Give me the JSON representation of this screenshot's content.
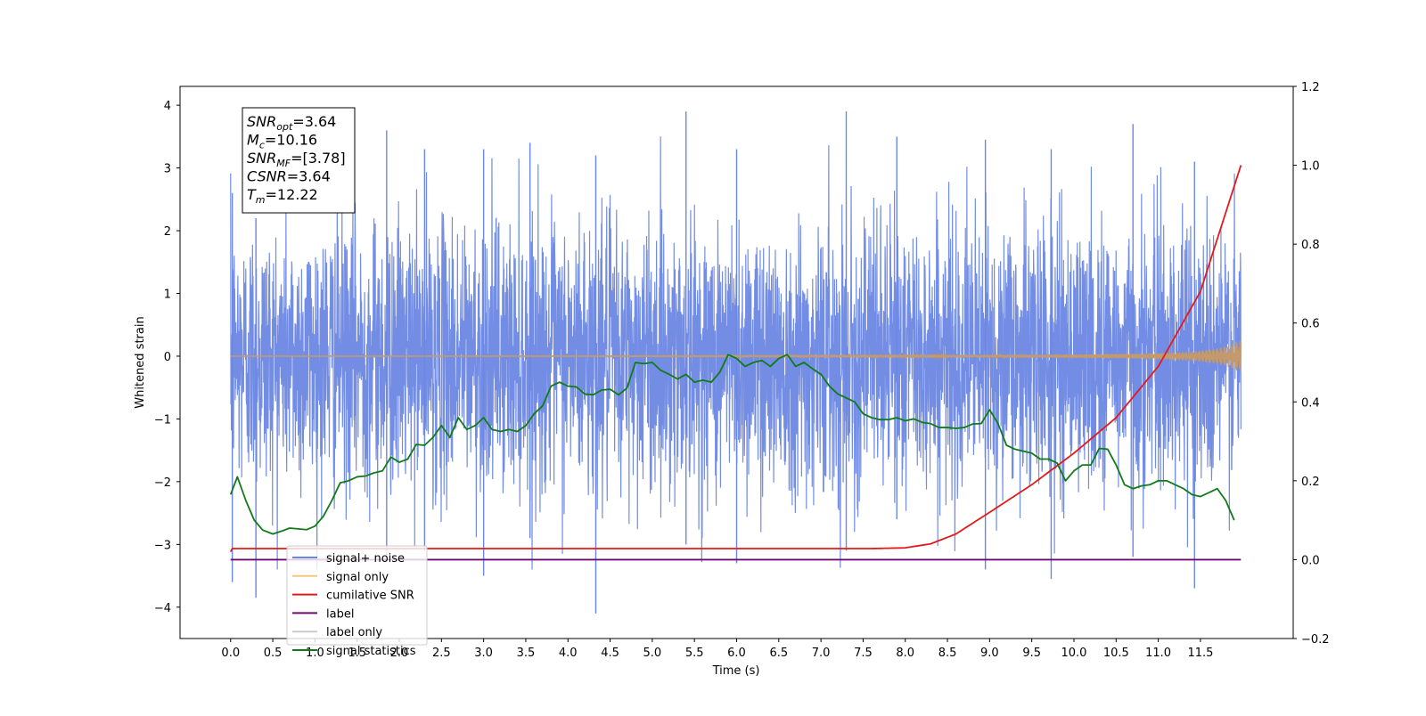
{
  "chart_data": {
    "type": "line",
    "xlabel": "Time (s)",
    "ylabel_left": "Whitened strain",
    "ylabel_right": "",
    "xlim": [
      -0.6,
      12.6
    ],
    "ylim_left": [
      -4.5,
      4.3
    ],
    "ylim_right": [
      -0.2,
      1.2
    ],
    "x_ticks": [
      0.0,
      0.5,
      1.0,
      1.5,
      2.0,
      2.5,
      3.0,
      3.5,
      4.0,
      4.5,
      5.0,
      5.5,
      6.0,
      6.5,
      7.0,
      7.5,
      8.0,
      8.5,
      9.0,
      9.5,
      10.0,
      10.5,
      11.0,
      11.5
    ],
    "x_tick_labels": [
      "0.0",
      "0.5",
      "1.0",
      "1.5",
      "2.0",
      "2.5",
      "3.0",
      "3.5",
      "4.0",
      "4.5",
      "5.0",
      "5.5",
      "6.0",
      "6.5",
      "7.0",
      "7.5",
      "8.0",
      "8.5",
      "9.0",
      "9.5",
      "10.0",
      "10.5",
      "11.0",
      "11.5"
    ],
    "y_left_ticks": [
      4,
      3,
      2,
      1,
      0,
      -1,
      -2,
      -3,
      -4
    ],
    "y_left_tick_labels": [
      "4",
      "3",
      "2",
      "1",
      "0",
      "−1",
      "−2",
      "−3",
      "−4"
    ],
    "y_right_ticks": [
      1.2,
      1.0,
      0.8,
      0.6,
      0.4,
      0.2,
      0.0,
      -0.2
    ],
    "y_right_tick_labels": [
      "1.2",
      "1.0",
      "0.8",
      "0.6",
      "0.4",
      "0.2",
      "0.0",
      "−0.2"
    ],
    "grid": false,
    "legend_placement": "lower-left",
    "legend": [
      {
        "label": "signal+ noise",
        "color": "#6b87e3"
      },
      {
        "label": "signal only",
        "color": "#f5c87a"
      },
      {
        "label": "cumilative SNR",
        "color": "#e31a1c"
      },
      {
        "label": "label",
        "color": "#6a0d6e"
      },
      {
        "label": "label only",
        "color": "#cccccc"
      },
      {
        "label": "signal statistics",
        "color": "#127a1a"
      }
    ],
    "info_box": [
      {
        "var": "SNR",
        "sub": "opt",
        "rest": "=3.64"
      },
      {
        "var": "M",
        "sub": "c",
        "rest": "=10.16"
      },
      {
        "var": "SNR",
        "sub": "MF",
        "rest": "=[3.78]"
      },
      {
        "var": "CSNR",
        "sub": "",
        "rest": "=3.64"
      },
      {
        "var": "T",
        "sub": "m",
        "rest": "=12.22"
      }
    ],
    "series": [
      {
        "name": "signal+ noise",
        "axis": "left",
        "color": "#6b87e3",
        "kind": "noise",
        "t_range": [
          0.0,
          11.98
        ],
        "envelope_typical": [
          -2.6,
          2.6
        ],
        "peaks_max": [
          3.6,
          3.9,
          3.9,
          3.9
        ],
        "peaks_min": [
          -3.6,
          -4.1,
          -3.5,
          -3.7
        ]
      },
      {
        "name": "signal only",
        "axis": "left",
        "color": "#c49a6c",
        "kind": "chirp",
        "t_range": [
          0.0,
          11.98
        ],
        "amp_end": 0.25
      },
      {
        "name": "cumilative SNR",
        "axis": "right",
        "color": "#e31a1c",
        "x": [
          0.0,
          0.02,
          7.6,
          8.0,
          8.3,
          8.6,
          9.0,
          9.5,
          10.0,
          10.5,
          11.0,
          11.5,
          11.98
        ],
        "y": [
          0.02,
          0.028,
          0.028,
          0.03,
          0.04,
          0.065,
          0.12,
          0.19,
          0.27,
          0.36,
          0.49,
          0.68,
          1.0
        ]
      },
      {
        "name": "label",
        "axis": "right",
        "color": "#6a0d6e",
        "x": [
          0.0,
          11.98
        ],
        "y": [
          0.0,
          0.0
        ]
      },
      {
        "name": "signal statistics",
        "axis": "right",
        "color": "#127a1a",
        "x": [
          0.0,
          0.08,
          0.18,
          0.28,
          0.38,
          0.5,
          0.6,
          0.7,
          0.8,
          0.9,
          1.0,
          1.1,
          1.2,
          1.3,
          1.4,
          1.5,
          1.6,
          1.7,
          1.8,
          1.9,
          2.0,
          2.1,
          2.2,
          2.3,
          2.4,
          2.5,
          2.6,
          2.7,
          2.8,
          2.9,
          3.0,
          3.1,
          3.2,
          3.3,
          3.4,
          3.5,
          3.6,
          3.7,
          3.8,
          3.9,
          4.0,
          4.1,
          4.2,
          4.3,
          4.4,
          4.5,
          4.6,
          4.7,
          4.8,
          4.9,
          5.0,
          5.1,
          5.2,
          5.3,
          5.4,
          5.5,
          5.6,
          5.7,
          5.8,
          5.9,
          6.0,
          6.1,
          6.2,
          6.3,
          6.4,
          6.5,
          6.6,
          6.7,
          6.8,
          6.9,
          7.0,
          7.1,
          7.2,
          7.3,
          7.4,
          7.5,
          7.6,
          7.7,
          7.8,
          7.9,
          8.0,
          8.1,
          8.2,
          8.3,
          8.4,
          8.5,
          8.6,
          8.7,
          8.8,
          8.9,
          9.0,
          9.1,
          9.2,
          9.3,
          9.4,
          9.5,
          9.6,
          9.7,
          9.8,
          9.9,
          10.0,
          10.1,
          10.2,
          10.3,
          10.4,
          10.5,
          10.6,
          10.7,
          10.8,
          10.9,
          11.0,
          11.1,
          11.2,
          11.3,
          11.4,
          11.5,
          11.6,
          11.7,
          11.8,
          11.9
        ],
        "y": [
          0.165,
          0.21,
          0.15,
          0.1,
          0.075,
          0.065,
          0.072,
          0.08,
          0.078,
          0.076,
          0.085,
          0.11,
          0.15,
          0.195,
          0.2,
          0.21,
          0.212,
          0.22,
          0.225,
          0.26,
          0.247,
          0.255,
          0.292,
          0.29,
          0.31,
          0.34,
          0.31,
          0.36,
          0.33,
          0.34,
          0.36,
          0.33,
          0.325,
          0.33,
          0.325,
          0.34,
          0.37,
          0.39,
          0.44,
          0.45,
          0.44,
          0.438,
          0.42,
          0.418,
          0.43,
          0.432,
          0.418,
          0.435,
          0.5,
          0.497,
          0.5,
          0.48,
          0.47,
          0.458,
          0.47,
          0.45,
          0.455,
          0.45,
          0.475,
          0.52,
          0.51,
          0.49,
          0.5,
          0.505,
          0.49,
          0.51,
          0.52,
          0.49,
          0.5,
          0.484,
          0.47,
          0.44,
          0.42,
          0.41,
          0.4,
          0.37,
          0.36,
          0.355,
          0.355,
          0.36,
          0.352,
          0.357,
          0.348,
          0.345,
          0.335,
          0.335,
          0.333,
          0.335,
          0.344,
          0.345,
          0.38,
          0.345,
          0.29,
          0.28,
          0.275,
          0.27,
          0.255,
          0.255,
          0.245,
          0.2,
          0.225,
          0.24,
          0.24,
          0.282,
          0.28,
          0.24,
          0.19,
          0.18,
          0.187,
          0.19,
          0.2,
          0.2,
          0.19,
          0.18,
          0.165,
          0.16,
          0.17,
          0.18,
          0.15,
          0.1
        ]
      }
    ]
  }
}
